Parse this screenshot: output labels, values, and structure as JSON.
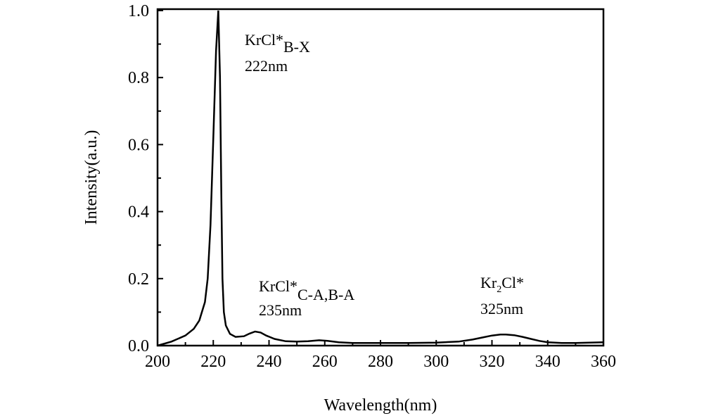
{
  "chart_data": {
    "type": "line",
    "title": "",
    "xlabel": "Wavelength(nm)",
    "ylabel": "Intensity(a.u.)",
    "xlim": [
      200,
      360
    ],
    "ylim": [
      0,
      1.0
    ],
    "xticks": [
      "200",
      "220",
      "240",
      "260",
      "280",
      "300",
      "320",
      "340",
      "360"
    ],
    "yticks": [
      "0.0",
      "0.2",
      "0.4",
      "0.6",
      "0.8",
      "1.0"
    ],
    "grid": false,
    "series": [
      {
        "x": [
          200,
          205,
          210,
          213,
          215,
          217,
          218,
          219,
          220,
          221,
          221.8,
          222.4,
          222.9,
          223.3,
          223.8,
          224.5,
          226,
          228,
          231,
          233,
          235,
          237,
          239,
          242,
          246,
          250,
          254,
          258,
          261,
          265,
          270,
          280,
          290,
          300,
          308,
          313,
          317,
          320,
          323,
          325,
          328,
          331,
          334,
          337,
          340,
          345,
          350,
          355,
          360
        ],
        "y": [
          0.0,
          0.012,
          0.03,
          0.05,
          0.075,
          0.13,
          0.2,
          0.36,
          0.62,
          0.88,
          1.0,
          0.8,
          0.45,
          0.2,
          0.1,
          0.06,
          0.035,
          0.026,
          0.028,
          0.036,
          0.042,
          0.039,
          0.03,
          0.02,
          0.013,
          0.012,
          0.013,
          0.016,
          0.014,
          0.01,
          0.008,
          0.008,
          0.008,
          0.009,
          0.012,
          0.018,
          0.025,
          0.03,
          0.033,
          0.033,
          0.031,
          0.026,
          0.02,
          0.014,
          0.01,
          0.008,
          0.008,
          0.009,
          0.01
        ],
        "color": "#000000"
      }
    ],
    "annotations": [
      {
        "main": "KrCl*",
        "sub": "B-X",
        "wavelength": "222nm"
      },
      {
        "main": "KrCl*",
        "sub": "C-A,B-A",
        "wavelength": "235nm"
      },
      {
        "main": "Kr",
        "main_sub": "2",
        "main_rest": "Cl*",
        "wavelength": "325nm"
      }
    ]
  }
}
